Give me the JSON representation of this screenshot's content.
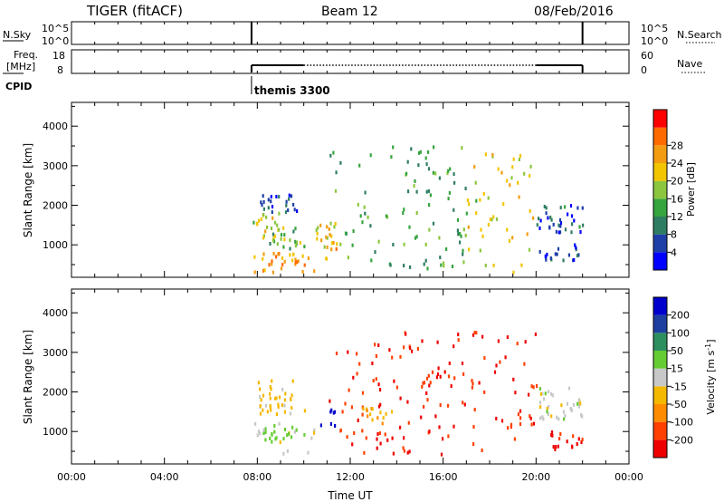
{
  "header": {
    "title": "TIGER (fitACF)",
    "beam": "Beam 12",
    "date": "08/Feb/2016"
  },
  "strip_labels": {
    "nsky": "N.Sky",
    "freq": "Freq.",
    "freq_unit": "[MHz]",
    "cpid": "CPID",
    "nsearch": "N.Search",
    "nave": "Nave"
  },
  "strips": {
    "noise_left_ticks": [
      "10^5",
      "10^0"
    ],
    "noise_right_ticks": [
      "10^5",
      "10^0"
    ],
    "freq_left_ticks": [
      "18",
      "8"
    ],
    "nave_right_ticks": [
      "60",
      "0"
    ],
    "cpid_text": "themis 3300",
    "data_start_hour": 7.75,
    "data_end_hour": 22.0,
    "freq_segments": [
      {
        "start": 7.75,
        "end": 10.0,
        "style": "solid"
      },
      {
        "start": 10.0,
        "end": 20.0,
        "style": "dotted"
      },
      {
        "start": 20.0,
        "end": 22.0,
        "style": "solid"
      }
    ]
  },
  "time_axis": {
    "label": "Time UT",
    "ticks": [
      "00:00",
      "04:00",
      "08:00",
      "12:00",
      "16:00",
      "20:00",
      "00:00"
    ],
    "range_hours": [
      0,
      24
    ]
  },
  "range_axis": {
    "label": "Slant Range [km]",
    "ticks": [
      "1000",
      "2000",
      "3000",
      "4000"
    ],
    "range_km": [
      180,
      4600
    ]
  },
  "power_scale": {
    "label": "Power [dB]",
    "ticks": [
      "4",
      "8",
      "12",
      "16",
      "20",
      "24",
      "28"
    ],
    "colors": [
      "#0000ff",
      "#1f3fa8",
      "#2e7d62",
      "#36a43f",
      "#8cc63f",
      "#f2c500",
      "#f39c12",
      "#ff6a00",
      "#ff0000"
    ]
  },
  "velocity_scale": {
    "label": "Velocity [m s",
    "label_sup": "-1",
    "label_end": "]",
    "ticks": [
      "200",
      "100",
      "50",
      "15",
      "-15",
      "-50",
      "-100",
      "-200"
    ],
    "colors": [
      "#0000cc",
      "#1e3fa0",
      "#2e8f5e",
      "#66cc33",
      "#c8c8c8",
      "#f5b800",
      "#ff8c00",
      "#ff4000",
      "#ee0000"
    ]
  },
  "chart_data": [
    {
      "type": "heatmap",
      "title": "Power",
      "xlabel": "Time UT",
      "ylabel": "Slant Range [km]",
      "xlim_hours": [
        0,
        24
      ],
      "ylim_km": [
        180,
        4600
      ],
      "colorbar_label": "Power [dB]",
      "clim_db": [
        0,
        32
      ],
      "echo_regions": [
        {
          "t": [
            7.8,
            10.5
          ],
          "r": [
            300,
            800
          ],
          "value": 22
        },
        {
          "t": [
            7.8,
            9.0
          ],
          "r": [
            1100,
            1800
          ],
          "value": 18
        },
        {
          "t": [
            8.5,
            10.0
          ],
          "r": [
            900,
            1500
          ],
          "value": 14
        },
        {
          "t": [
            7.9,
            9.8
          ],
          "r": [
            1800,
            2300
          ],
          "value": 6
        },
        {
          "t": [
            10.5,
            11.5
          ],
          "r": [
            600,
            1600
          ],
          "value": 20
        },
        {
          "t": [
            11.0,
            17.0
          ],
          "r": [
            400,
            3500
          ],
          "value": 12
        },
        {
          "t": [
            17.0,
            20.0
          ],
          "r": [
            300,
            3300
          ],
          "value": 19
        },
        {
          "t": [
            20.0,
            22.0
          ],
          "r": [
            1300,
            2000
          ],
          "value": 6
        },
        {
          "t": [
            20.0,
            22.0
          ],
          "r": [
            600,
            1000
          ],
          "value": 4
        }
      ]
    },
    {
      "type": "heatmap",
      "title": "Velocity",
      "xlabel": "Time UT",
      "ylabel": "Slant Range [km]",
      "xlim_hours": [
        0,
        24
      ],
      "ylim_km": [
        180,
        4600
      ],
      "colorbar_label": "Velocity [m s-1]",
      "clim_ms": [
        -250,
        250
      ],
      "echo_regions": [
        {
          "t": [
            7.8,
            10.5
          ],
          "r": [
            400,
            1800
          ],
          "value": 0
        },
        {
          "t": [
            8.2,
            10.0
          ],
          "r": [
            700,
            1200
          ],
          "value": 30
        },
        {
          "t": [
            8.0,
            9.5
          ],
          "r": [
            1400,
            2300
          ],
          "value": -30
        },
        {
          "t": [
            10.7,
            11.3
          ],
          "r": [
            1100,
            1600
          ],
          "value": 220
        },
        {
          "t": [
            11.0,
            20.0
          ],
          "r": [
            400,
            3500
          ],
          "value": -200
        },
        {
          "t": [
            12.5,
            14.0
          ],
          "r": [
            1200,
            1600
          ],
          "value": -50
        },
        {
          "t": [
            20.0,
            22.0
          ],
          "r": [
            1300,
            2100
          ],
          "value": 0
        },
        {
          "t": [
            20.5,
            22.0
          ],
          "r": [
            500,
            1000
          ],
          "value": -200
        }
      ]
    }
  ]
}
